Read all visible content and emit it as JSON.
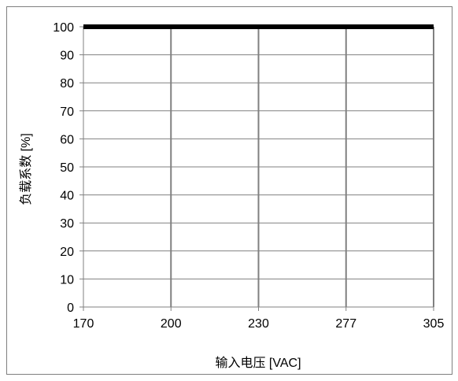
{
  "chart_data": {
    "type": "line",
    "xlabel": "输入电压 [VAC]",
    "ylabel": "负载系数 [%]",
    "x_categories": [
      "170",
      "200",
      "230",
      "277",
      "305"
    ],
    "y_ticks": [
      0,
      10,
      20,
      30,
      40,
      50,
      60,
      70,
      80,
      90,
      100
    ],
    "ylim": [
      0,
      100
    ],
    "grid": true,
    "series": [
      {
        "values": [
          100,
          100,
          100,
          100,
          100
        ],
        "color": "#000000"
      }
    ]
  }
}
